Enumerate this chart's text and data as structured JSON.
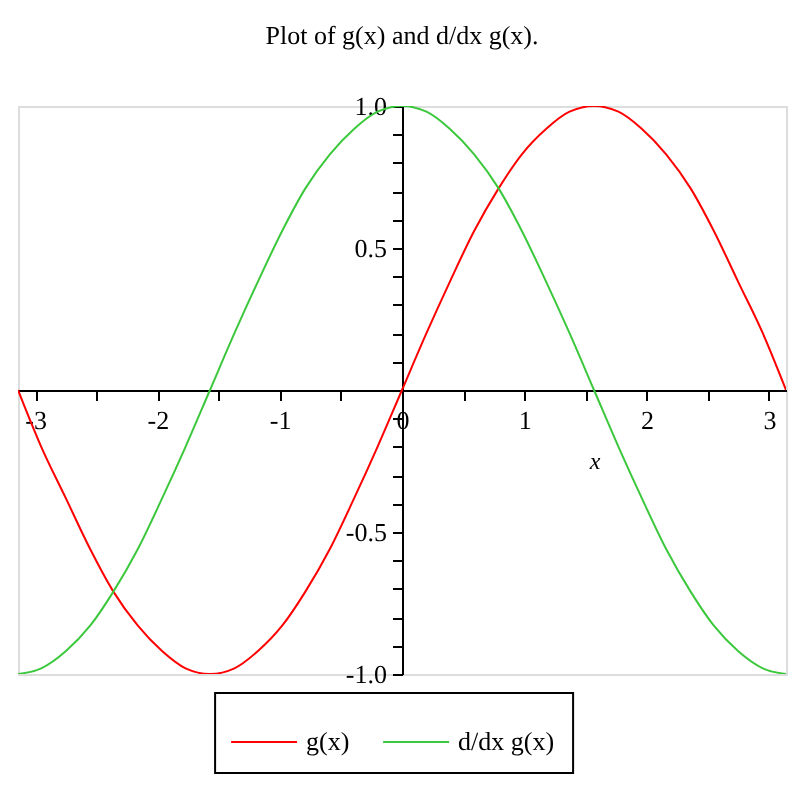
{
  "chart_data": {
    "type": "line",
    "title": "Plot of g(x) and d/dx g(x).",
    "xlabel": "x",
    "x": [
      -3.14,
      -2.95,
      -2.75,
      -2.55,
      -2.36,
      -2.16,
      -1.96,
      -1.77,
      -1.57,
      -1.37,
      -1.18,
      -0.98,
      -0.79,
      -0.59,
      -0.39,
      -0.2,
      0,
      0.2,
      0.39,
      0.59,
      0.79,
      0.98,
      1.18,
      1.37,
      1.57,
      1.77,
      1.96,
      2.16,
      2.36,
      2.55,
      2.75,
      2.95,
      3.14
    ],
    "series": [
      {
        "name": "g(x)",
        "color": "#ff0000",
        "values": [
          0,
          -0.2,
          -0.38,
          -0.56,
          -0.71,
          -0.83,
          -0.92,
          -0.98,
          -1,
          -0.98,
          -0.92,
          -0.83,
          -0.71,
          -0.56,
          -0.38,
          -0.2,
          0,
          0.2,
          0.38,
          0.56,
          0.71,
          0.83,
          0.92,
          0.98,
          1,
          0.98,
          0.92,
          0.83,
          0.71,
          0.56,
          0.38,
          0.2,
          0
        ]
      },
      {
        "name": "d/dx g(x)",
        "color": "#3cc83c",
        "values": [
          -1,
          -0.98,
          -0.92,
          -0.83,
          -0.71,
          -0.56,
          -0.38,
          -0.2,
          0,
          0.2,
          0.38,
          0.56,
          0.71,
          0.83,
          0.92,
          0.98,
          1,
          0.98,
          0.92,
          0.83,
          0.71,
          0.56,
          0.38,
          0.2,
          0,
          -0.2,
          -0.38,
          -0.56,
          -0.71,
          -0.83,
          -0.92,
          -0.98,
          -1
        ]
      }
    ],
    "xlim": [
      -3.14,
      3.14
    ],
    "ylim": [
      -1,
      1
    ],
    "xticks": [
      -3,
      {
        "value": -2.5,
        "label": null
      },
      -2,
      {
        "value": -1.5,
        "label": null
      },
      -1,
      {
        "value": -0.5,
        "label": null
      },
      0,
      {
        "value": 0.5,
        "label": null
      },
      1,
      {
        "value": 1.5,
        "label": null
      },
      2,
      {
        "value": 2.5,
        "label": null
      },
      3
    ],
    "yticks": [
      {
        "value": -1,
        "label": "-1.0"
      },
      {
        "value": -0.9,
        "label": null
      },
      {
        "value": -0.8,
        "label": null
      },
      {
        "value": -0.7,
        "label": null
      },
      {
        "value": -0.6,
        "label": null
      },
      {
        "value": -0.5,
        "label": "-0.5"
      },
      {
        "value": -0.4,
        "label": null
      },
      {
        "value": -0.3,
        "label": null
      },
      {
        "value": -0.2,
        "label": null
      },
      {
        "value": -0.1,
        "label": null
      },
      {
        "value": 0.1,
        "label": null
      },
      {
        "value": 0.2,
        "label": null
      },
      {
        "value": 0.3,
        "label": null
      },
      {
        "value": 0.4,
        "label": null
      },
      {
        "value": 0.5,
        "label": "0.5"
      },
      {
        "value": 0.6,
        "label": null
      },
      {
        "value": 0.7,
        "label": null
      },
      {
        "value": 0.8,
        "label": null
      },
      {
        "value": 0.9,
        "label": null
      },
      {
        "value": 1,
        "label": "1.0"
      }
    ],
    "legend": "bottom"
  }
}
